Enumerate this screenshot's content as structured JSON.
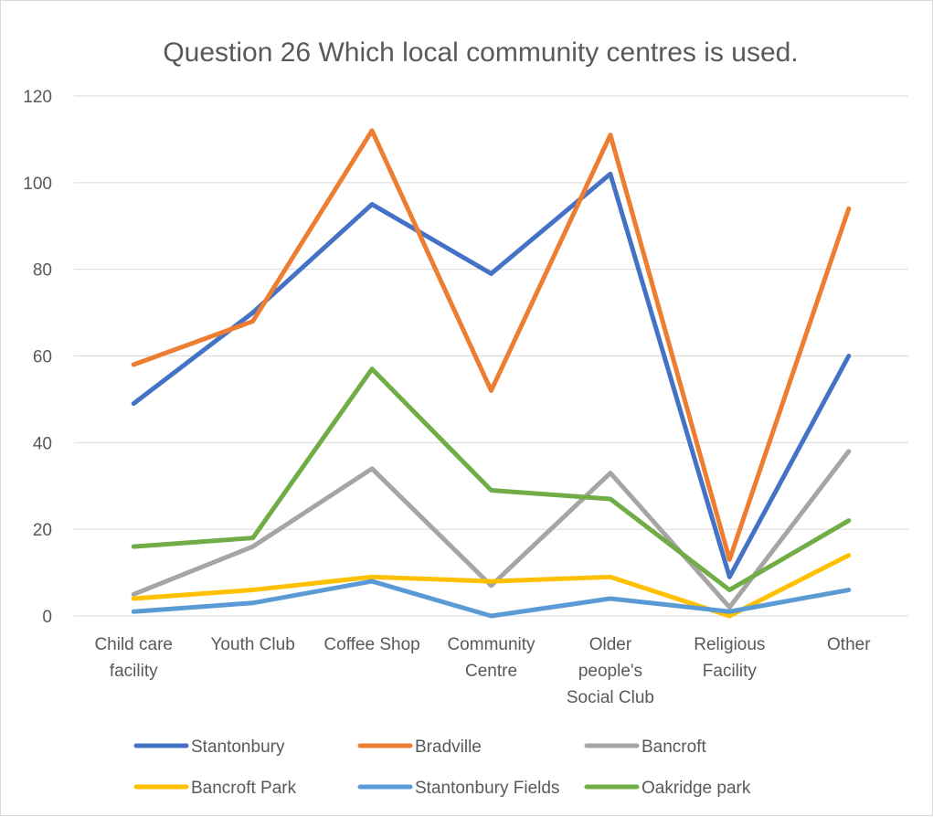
{
  "chart_data": {
    "type": "line",
    "title": "Question 26 Which local community centres is used.",
    "xlabel": "",
    "ylabel": "",
    "ylim": [
      0,
      120
    ],
    "yticks": [
      "0",
      "20",
      "40",
      "60",
      "80",
      "100",
      "120"
    ],
    "grid": true,
    "legend_position": "bottom",
    "categories": [
      [
        "Child care",
        "facility"
      ],
      [
        "Youth Club"
      ],
      [
        "Coffee Shop"
      ],
      [
        "Community",
        "Centre"
      ],
      [
        "Older",
        "people's",
        "Social Club"
      ],
      [
        "Religious",
        "Facility"
      ],
      [
        "Other"
      ]
    ],
    "series": [
      {
        "name": "Stantonbury",
        "color": "#4472c4",
        "values": [
          49,
          70,
          95,
          79,
          102,
          9,
          60
        ]
      },
      {
        "name": "Bradville",
        "color": "#ed7d31",
        "values": [
          58,
          68,
          112,
          52,
          111,
          13,
          94
        ]
      },
      {
        "name": "Bancroft",
        "color": "#a5a5a5",
        "values": [
          5,
          16,
          34,
          7,
          33,
          2,
          38
        ]
      },
      {
        "name": "Bancroft  Park",
        "color": "#ffc000",
        "values": [
          4,
          6,
          9,
          8,
          9,
          0,
          14
        ]
      },
      {
        "name": "Stantonbury Fields",
        "color": "#5b9bd5",
        "values": [
          1,
          3,
          8,
          0,
          4,
          1,
          6
        ]
      },
      {
        "name": "Oakridge park",
        "color": "#70ad47",
        "values": [
          16,
          18,
          57,
          29,
          27,
          6,
          22
        ]
      }
    ]
  }
}
